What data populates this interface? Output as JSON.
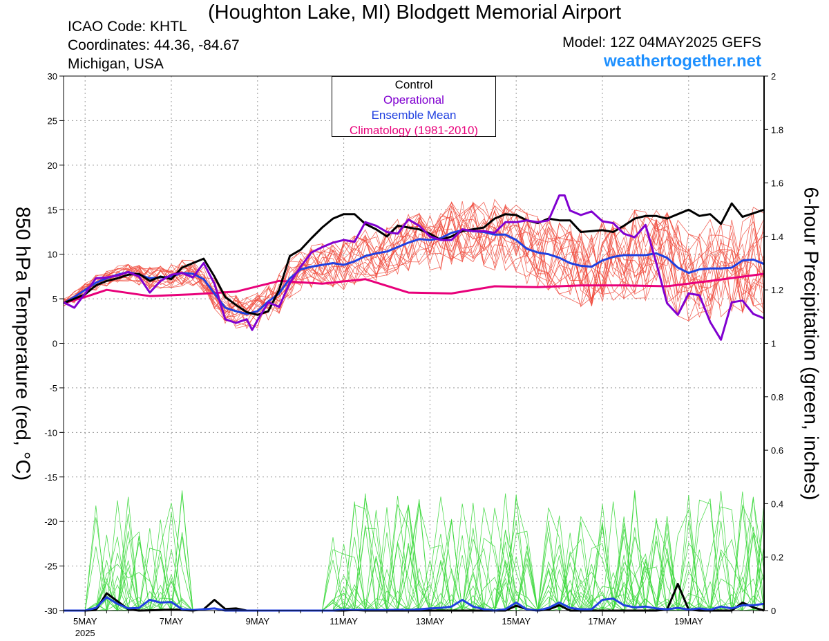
{
  "header": {
    "title": "(Houghton Lake, MI) Blodgett Memorial Airport",
    "icao": "ICAO Code: KHTL",
    "coordinates": "Coordinates: 44.36, -84.67",
    "location": "Michigan, USA",
    "model": "Model: 12Z 04MAY2025 GEFS",
    "site": "weathertogether.net"
  },
  "legend": {
    "control": "Control",
    "operational": "Operational",
    "mean": "Ensemble Mean",
    "climatology": "Climatology (1981-2010)"
  },
  "colors": {
    "control": "#000000",
    "operational": "#8000d0",
    "mean": "#2040e0",
    "climatology": "#e8007a",
    "members": "#f04a3c",
    "precip_members": "#3cd83c",
    "site": "#1e90ff"
  },
  "chart_data": {
    "type": "line",
    "ylabel_left": "850 hPa Temperature (red, °C)",
    "ylabel_right": "6-hour Precipitation (green, inches)",
    "x_unit": "forecast hour from 12Z 04MAY2025, 6-hourly",
    "xlim": [
      0,
      390
    ],
    "ylim_left": [
      -30,
      30
    ],
    "ylim_right": [
      0,
      2
    ],
    "left_ticks": [
      -30,
      -25,
      -20,
      -15,
      -10,
      -5,
      0,
      5,
      10,
      15,
      20,
      25,
      30
    ],
    "right_ticks": [
      0,
      0.2,
      0.4,
      0.6,
      0.8,
      1,
      1.2,
      1.4,
      1.6,
      1.8,
      2
    ],
    "x_ticks": [
      {
        "label": "5MAY",
        "sub": "2025",
        "hour": 12
      },
      {
        "label": "7MAY",
        "sub": "",
        "hour": 60
      },
      {
        "label": "9MAY",
        "sub": "",
        "hour": 108
      },
      {
        "label": "11MAY",
        "sub": "",
        "hour": 156
      },
      {
        "label": "13MAY",
        "sub": "",
        "hour": 204
      },
      {
        "label": "15MAY",
        "sub": "",
        "hour": 252
      },
      {
        "label": "17MAY",
        "sub": "",
        "hour": 300
      },
      {
        "label": "19MAY",
        "sub": "",
        "hour": 348
      }
    ],
    "grid": true,
    "legend_position": "top-center",
    "climatology_temp": [
      [
        0,
        4.5
      ],
      [
        12,
        5.2
      ],
      [
        24,
        6.0
      ],
      [
        48,
        5.3
      ],
      [
        72,
        5.5
      ],
      [
        96,
        5.8
      ],
      [
        120,
        7.0
      ],
      [
        144,
        6.7
      ],
      [
        168,
        7.2
      ],
      [
        192,
        5.7
      ],
      [
        216,
        5.6
      ],
      [
        240,
        6.4
      ],
      [
        264,
        6.3
      ],
      [
        288,
        6.5
      ],
      [
        312,
        6.5
      ],
      [
        336,
        6.4
      ],
      [
        360,
        7.0
      ],
      [
        390,
        7.8
      ]
    ],
    "control_temp": [
      [
        0,
        4.5
      ],
      [
        12,
        5.5
      ],
      [
        18,
        6.5
      ],
      [
        24,
        7.0
      ],
      [
        30,
        7.3
      ],
      [
        36,
        7.7
      ],
      [
        42,
        7.8
      ],
      [
        48,
        7.0
      ],
      [
        54,
        7.5
      ],
      [
        60,
        7.2
      ],
      [
        66,
        8.5
      ],
      [
        72,
        9.0
      ],
      [
        78,
        9.5
      ],
      [
        84,
        7.5
      ],
      [
        90,
        5.2
      ],
      [
        96,
        4.3
      ],
      [
        102,
        3.5
      ],
      [
        108,
        3.2
      ],
      [
        114,
        3.6
      ],
      [
        120,
        6.0
      ],
      [
        126,
        9.8
      ],
      [
        132,
        10.5
      ],
      [
        138,
        11.8
      ],
      [
        144,
        13.0
      ],
      [
        150,
        14.0
      ],
      [
        156,
        14.5
      ],
      [
        162,
        14.5
      ],
      [
        168,
        13.4
      ],
      [
        174,
        12.8
      ],
      [
        180,
        12.0
      ],
      [
        186,
        13.2
      ],
      [
        192,
        13.0
      ],
      [
        198,
        12.8
      ],
      [
        204,
        12.3
      ],
      [
        210,
        11.6
      ],
      [
        216,
        12.0
      ],
      [
        222,
        12.6
      ],
      [
        228,
        12.8
      ],
      [
        234,
        13.0
      ],
      [
        240,
        14.0
      ],
      [
        246,
        14.5
      ],
      [
        252,
        14.4
      ],
      [
        258,
        13.8
      ],
      [
        264,
        13.5
      ],
      [
        270,
        14.0
      ],
      [
        276,
        13.8
      ],
      [
        282,
        13.8
      ],
      [
        288,
        12.5
      ],
      [
        294,
        12.6
      ],
      [
        300,
        12.7
      ],
      [
        306,
        12.5
      ],
      [
        312,
        13.2
      ],
      [
        318,
        14.0
      ],
      [
        324,
        14.3
      ],
      [
        330,
        14.3
      ],
      [
        336,
        14.0
      ],
      [
        342,
        14.5
      ],
      [
        348,
        15.0
      ],
      [
        354,
        14.3
      ],
      [
        360,
        14.5
      ],
      [
        366,
        13.4
      ],
      [
        372,
        15.7
      ],
      [
        378,
        14.2
      ],
      [
        384,
        14.6
      ],
      [
        390,
        15.0
      ]
    ],
    "operational_temp": [
      [
        0,
        4.6
      ],
      [
        6,
        4.0
      ],
      [
        12,
        5.6
      ],
      [
        18,
        7.3
      ],
      [
        24,
        7.4
      ],
      [
        30,
        7.6
      ],
      [
        36,
        8.0
      ],
      [
        42,
        7.5
      ],
      [
        48,
        5.7
      ],
      [
        54,
        7.0
      ],
      [
        60,
        7.7
      ],
      [
        66,
        7.9
      ],
      [
        72,
        7.4
      ],
      [
        78,
        9.0
      ],
      [
        84,
        6.7
      ],
      [
        90,
        2.7
      ],
      [
        96,
        2.3
      ],
      [
        102,
        2.7
      ],
      [
        105,
        1.5
      ],
      [
        108,
        2.6
      ],
      [
        114,
        4.6
      ],
      [
        120,
        4.1
      ],
      [
        126,
        6.8
      ],
      [
        132,
        8.6
      ],
      [
        138,
        10.2
      ],
      [
        144,
        10.8
      ],
      [
        150,
        11.3
      ],
      [
        156,
        11.6
      ],
      [
        162,
        11.4
      ],
      [
        168,
        13.6
      ],
      [
        174,
        13.2
      ],
      [
        180,
        12.5
      ],
      [
        186,
        12.3
      ],
      [
        192,
        13.9
      ],
      [
        198,
        13.2
      ],
      [
        204,
        12.0
      ],
      [
        210,
        11.6
      ],
      [
        216,
        11.6
      ],
      [
        222,
        12.8
      ],
      [
        228,
        12.6
      ],
      [
        234,
        12.6
      ],
      [
        240,
        12.4
      ],
      [
        246,
        13.6
      ],
      [
        252,
        13.6
      ],
      [
        258,
        13.8
      ],
      [
        264,
        13.6
      ],
      [
        270,
        13.8
      ],
      [
        276,
        16.6
      ],
      [
        279,
        16.6
      ],
      [
        282,
        14.9
      ],
      [
        288,
        14.4
      ],
      [
        294,
        14.8
      ],
      [
        300,
        13.7
      ],
      [
        306,
        13.5
      ],
      [
        312,
        12.3
      ],
      [
        318,
        11.9
      ],
      [
        324,
        13.3
      ],
      [
        330,
        9.0
      ],
      [
        336,
        4.5
      ],
      [
        342,
        3.2
      ],
      [
        348,
        5.6
      ],
      [
        354,
        5.4
      ],
      [
        360,
        2.4
      ],
      [
        366,
        0.4
      ],
      [
        372,
        4.6
      ],
      [
        378,
        4.8
      ],
      [
        384,
        3.3
      ],
      [
        390,
        2.8
      ]
    ],
    "mean_temp": [
      [
        0,
        4.5
      ],
      [
        6,
        5.2
      ],
      [
        12,
        6.0
      ],
      [
        18,
        6.8
      ],
      [
        24,
        7.3
      ],
      [
        30,
        7.7
      ],
      [
        36,
        8.0
      ],
      [
        42,
        7.7
      ],
      [
        48,
        7.3
      ],
      [
        54,
        7.4
      ],
      [
        60,
        7.5
      ],
      [
        66,
        7.9
      ],
      [
        72,
        7.8
      ],
      [
        78,
        7.2
      ],
      [
        84,
        5.6
      ],
      [
        90,
        4.0
      ],
      [
        96,
        3.6
      ],
      [
        102,
        3.3
      ],
      [
        108,
        3.6
      ],
      [
        114,
        4.7
      ],
      [
        120,
        5.6
      ],
      [
        126,
        7.3
      ],
      [
        132,
        8.3
      ],
      [
        138,
        8.6
      ],
      [
        144,
        8.8
      ],
      [
        150,
        9.0
      ],
      [
        156,
        8.8
      ],
      [
        162,
        9.2
      ],
      [
        168,
        9.8
      ],
      [
        174,
        10.1
      ],
      [
        180,
        10.3
      ],
      [
        186,
        10.8
      ],
      [
        192,
        11.3
      ],
      [
        198,
        11.7
      ],
      [
        204,
        11.6
      ],
      [
        210,
        11.8
      ],
      [
        216,
        12.4
      ],
      [
        222,
        12.7
      ],
      [
        228,
        12.6
      ],
      [
        234,
        12.5
      ],
      [
        240,
        12.2
      ],
      [
        246,
        12.2
      ],
      [
        252,
        11.6
      ],
      [
        258,
        10.6
      ],
      [
        264,
        10.2
      ],
      [
        270,
        10.0
      ],
      [
        276,
        9.6
      ],
      [
        282,
        9.0
      ],
      [
        288,
        8.7
      ],
      [
        294,
        8.6
      ],
      [
        300,
        9.3
      ],
      [
        306,
        9.7
      ],
      [
        312,
        9.9
      ],
      [
        318,
        9.9
      ],
      [
        324,
        9.9
      ],
      [
        330,
        10.1
      ],
      [
        336,
        9.6
      ],
      [
        342,
        8.5
      ],
      [
        348,
        7.9
      ],
      [
        354,
        8.3
      ],
      [
        360,
        8.4
      ],
      [
        366,
        8.4
      ],
      [
        372,
        8.5
      ],
      [
        378,
        9.3
      ],
      [
        384,
        9.4
      ],
      [
        390,
        8.9
      ]
    ],
    "control_precip": [
      [
        0,
        0
      ],
      [
        12,
        0
      ],
      [
        18,
        0.002
      ],
      [
        24,
        0.065
      ],
      [
        30,
        0.035
      ],
      [
        36,
        0.005
      ],
      [
        42,
        0
      ],
      [
        54,
        0.002
      ],
      [
        60,
        0.004
      ],
      [
        72,
        0
      ],
      [
        78,
        0.005
      ],
      [
        84,
        0.04
      ],
      [
        90,
        0.006
      ],
      [
        96,
        0.008
      ],
      [
        102,
        0
      ],
      [
        156,
        0
      ],
      [
        162,
        0.002
      ],
      [
        168,
        0
      ],
      [
        246,
        0
      ],
      [
        252,
        0.018
      ],
      [
        258,
        0.005
      ],
      [
        264,
        0
      ],
      [
        270,
        0.004
      ],
      [
        276,
        0.02
      ],
      [
        282,
        0
      ],
      [
        330,
        0
      ],
      [
        336,
        0.004
      ],
      [
        342,
        0.1
      ],
      [
        348,
        0.004
      ],
      [
        354,
        0
      ],
      [
        372,
        0
      ],
      [
        378,
        0.03
      ],
      [
        384,
        0.012
      ],
      [
        390,
        0
      ]
    ],
    "mean_precip": [
      [
        0,
        0
      ],
      [
        12,
        0
      ],
      [
        18,
        0.01
      ],
      [
        24,
        0.05
      ],
      [
        30,
        0.025
      ],
      [
        36,
        0.008
      ],
      [
        42,
        0.01
      ],
      [
        48,
        0.04
      ],
      [
        54,
        0.03
      ],
      [
        60,
        0.032
      ],
      [
        66,
        0.005
      ],
      [
        72,
        0.002
      ],
      [
        78,
        0.005
      ],
      [
        84,
        0.008
      ],
      [
        90,
        0
      ],
      [
        150,
        0
      ],
      [
        156,
        0.003
      ],
      [
        162,
        0.002
      ],
      [
        180,
        0.002
      ],
      [
        186,
        0.003
      ],
      [
        192,
        0.002
      ],
      [
        198,
        0.005
      ],
      [
        204,
        0.008
      ],
      [
        210,
        0.01
      ],
      [
        216,
        0.015
      ],
      [
        222,
        0.04
      ],
      [
        228,
        0.015
      ],
      [
        234,
        0.005
      ],
      [
        240,
        0
      ],
      [
        246,
        0.005
      ],
      [
        252,
        0.03
      ],
      [
        258,
        0.004
      ],
      [
        264,
        0
      ],
      [
        270,
        0.01
      ],
      [
        276,
        0.03
      ],
      [
        282,
        0.01
      ],
      [
        288,
        0.005
      ],
      [
        294,
        0.005
      ],
      [
        300,
        0.04
      ],
      [
        306,
        0.045
      ],
      [
        312,
        0.02
      ],
      [
        318,
        0.012
      ],
      [
        324,
        0.015
      ],
      [
        330,
        0.008
      ],
      [
        336,
        0.005
      ],
      [
        342,
        0.01
      ],
      [
        348,
        0.004
      ],
      [
        354,
        0.008
      ],
      [
        360,
        0.003
      ],
      [
        366,
        0.015
      ],
      [
        372,
        0.008
      ],
      [
        378,
        0.02
      ],
      [
        384,
        0.02
      ],
      [
        390,
        0.025
      ]
    ]
  }
}
